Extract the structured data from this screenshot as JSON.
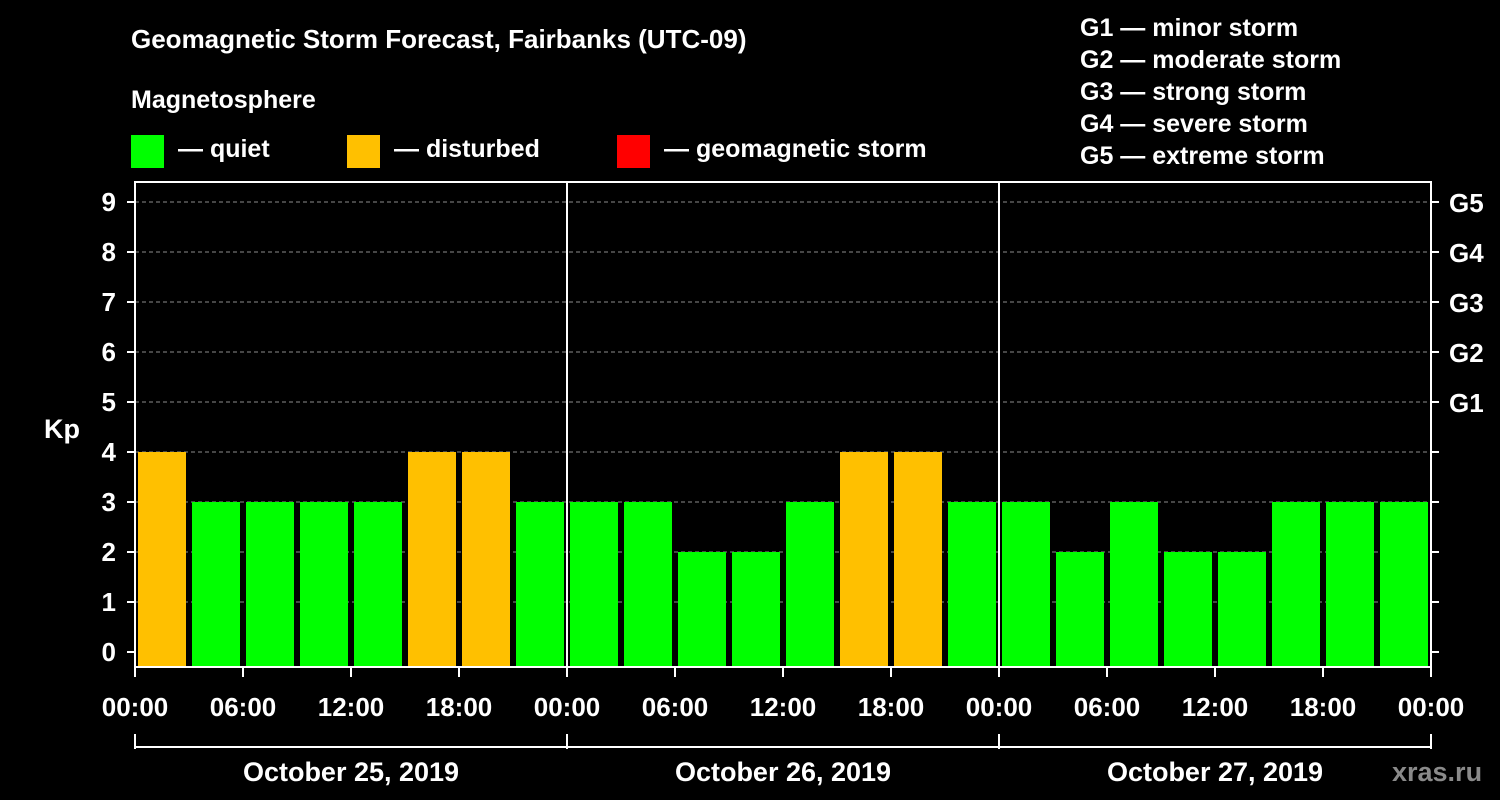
{
  "title": "Geomagnetic Storm Forecast, Fairbanks (UTC-09)",
  "legend": {
    "heading": "Magnetosphere",
    "items": [
      {
        "label": "— quiet",
        "color": "#00ff00"
      },
      {
        "label": "— disturbed",
        "color": "#ffc000"
      },
      {
        "label": "— geomagnetic storm",
        "color": "#ff0000"
      }
    ]
  },
  "storm_scale": [
    "G1 — minor storm",
    "G2 — moderate storm",
    "G3 — strong storm",
    "G4 — severe storm",
    "G5 — extreme storm"
  ],
  "watermark": "xras.ru",
  "chart_data": {
    "type": "bar",
    "ylabel": "Kp",
    "ylim": [
      0,
      9
    ],
    "yticks": [
      "0",
      "1",
      "2",
      "3",
      "4",
      "5",
      "6",
      "7",
      "8",
      "9"
    ],
    "right_axis_labels": [
      {
        "kp": 5,
        "label": "G1"
      },
      {
        "kp": 6,
        "label": "G2"
      },
      {
        "kp": 7,
        "label": "G3"
      },
      {
        "kp": 8,
        "label": "G4"
      },
      {
        "kp": 9,
        "label": "G5"
      }
    ],
    "x_tick_labels": [
      "00:00",
      "06:00",
      "12:00",
      "18:00",
      "00:00",
      "06:00",
      "12:00",
      "18:00",
      "00:00",
      "06:00",
      "12:00",
      "18:00",
      "00:00"
    ],
    "days": [
      "October 25, 2019",
      "October 26, 2019",
      "October 27, 2019"
    ],
    "interval_hours": 3,
    "values": [
      4,
      3,
      3,
      3,
      3,
      4,
      4,
      3,
      3,
      3,
      2,
      2,
      3,
      4,
      4,
      3,
      3,
      2,
      3,
      2,
      2,
      3,
      3,
      3
    ],
    "colors": {
      "quiet": "#00ff00",
      "disturbed": "#ffc000",
      "storm": "#ff0000"
    },
    "thresholds": {
      "disturbed": 4,
      "storm": 5
    }
  }
}
